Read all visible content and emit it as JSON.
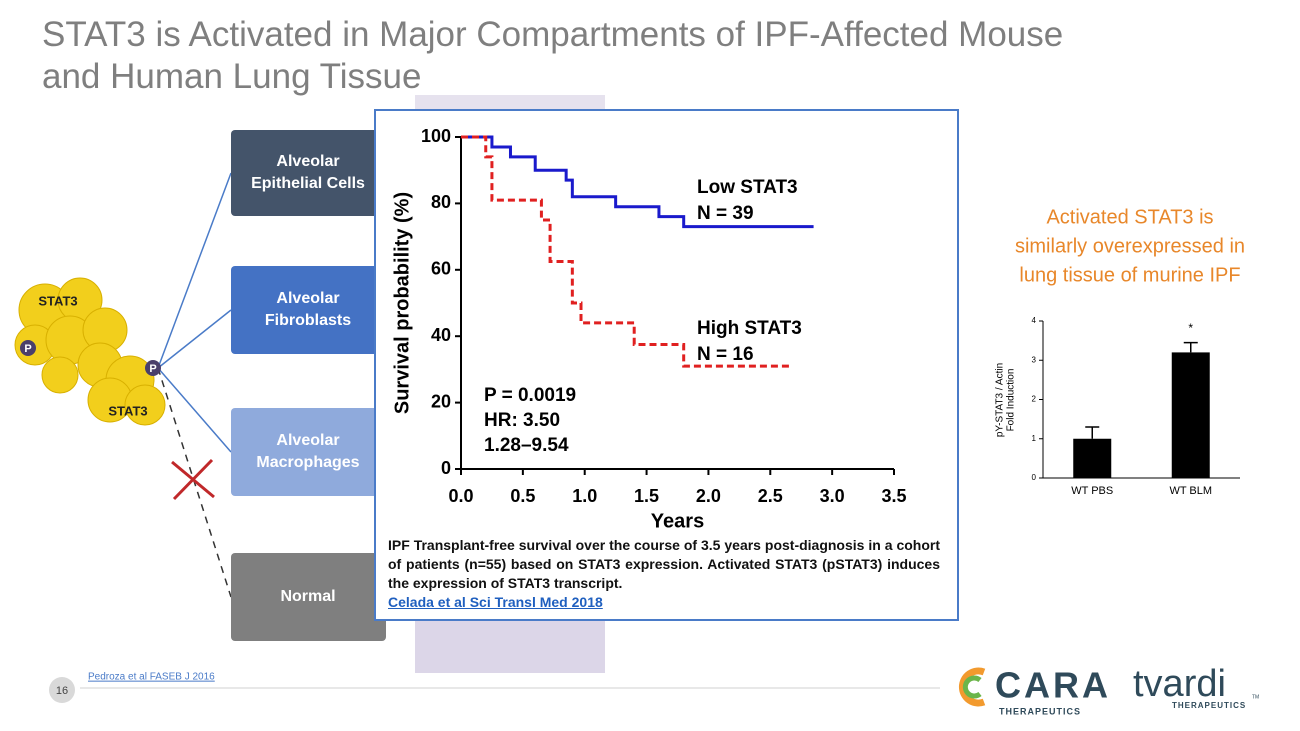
{
  "title": "STAT3 is Activated in Major Compartments of IPF-Affected Mouse and Human Lung Tissue",
  "protein_labels": [
    "STAT3",
    "STAT3",
    "P",
    "P"
  ],
  "boxes": [
    {
      "lines": [
        "Alveolar",
        "Epithelial Cells"
      ]
    },
    {
      "lines": [
        "Alveolar",
        "Fibroblasts"
      ]
    },
    {
      "lines": [
        "Alveolar",
        "Macrophages"
      ]
    },
    {
      "lines": [
        "Normal"
      ]
    }
  ],
  "callout": [
    "Activated STAT3 is",
    "similarly overexpressed in",
    "lung tissue of murine IPF"
  ],
  "caption": "IPF Transplant-free survival over the course of 3.5 years post-diagnosis in a cohort of patients (n=55) based on STAT3 expression. Activated STAT3 (pSTAT3) induces the expression of STAT3 transcript.",
  "caption_link": "Celada et al Sci Transl Med 2018",
  "citation": "Pedroza et al FASEB J 2016",
  "page_number": "16",
  "logos": {
    "cara": "CARA",
    "cara_sub": "THERAPEUTICS",
    "tvardi": "tvardi",
    "tvardi_sub": "THERAPEUTICS",
    "tm": "TM"
  },
  "chart_data": [
    {
      "type": "line",
      "step": true,
      "x_label": "Years",
      "y_label": "Survival probability (%)",
      "xlim": [
        0,
        3.5
      ],
      "ylim": [
        0,
        100
      ],
      "xticks": [
        {
          "value": 0,
          "label": "0.0"
        },
        0.5,
        {
          "value": 1,
          "label": "1.0"
        },
        1.5,
        {
          "value": 2,
          "label": "2.0"
        },
        2.5,
        {
          "value": 3,
          "label": "3.0"
        },
        3.5
      ],
      "yticks": [
        0,
        20,
        40,
        60,
        80,
        100
      ],
      "series": [
        {
          "name": "Low STAT3",
          "n_label": "N = 39",
          "color": "#1a1acc",
          "dashed": false,
          "x": [
            0,
            0.25,
            0.4,
            0.6,
            0.85,
            0.9,
            1.25,
            1.6,
            1.8,
            2.85
          ],
          "values": [
            100,
            97,
            94,
            90,
            87,
            82,
            79,
            76,
            73,
            73
          ]
        },
        {
          "name": "High STAT3",
          "n_label": "N = 16",
          "color": "#e02020",
          "dashed": true,
          "x": [
            0,
            0.2,
            0.25,
            0.65,
            0.72,
            0.9,
            0.97,
            1.4,
            1.8,
            2.67
          ],
          "values": [
            100,
            94,
            81,
            75,
            62.5,
            50,
            44,
            37.5,
            31,
            31
          ]
        }
      ],
      "annotations": [
        "P = 0.0019",
        "HR: 3.50",
        "1.28–9.54"
      ]
    },
    {
      "type": "bar",
      "y_label": [
        "pY-STAT3 / Actin",
        "Fold Induction"
      ],
      "categories": [
        "WT PBS",
        "WT BLM"
      ],
      "values": [
        1.0,
        3.2
      ],
      "errors": [
        0.3,
        0.25
      ],
      "color": "#000000",
      "significance": [
        null,
        "*"
      ],
      "ylim": [
        0,
        4
      ],
      "yticks": [
        0,
        1,
        2,
        3,
        4
      ]
    }
  ]
}
